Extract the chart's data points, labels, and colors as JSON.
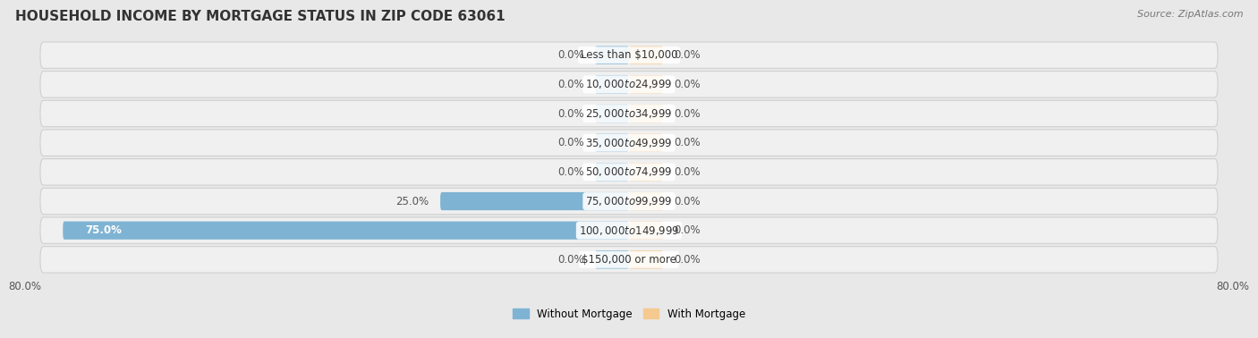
{
  "title": "HOUSEHOLD INCOME BY MORTGAGE STATUS IN ZIP CODE 63061",
  "source": "Source: ZipAtlas.com",
  "categories": [
    "Less than $10,000",
    "$10,000 to $24,999",
    "$25,000 to $34,999",
    "$35,000 to $49,999",
    "$50,000 to $74,999",
    "$75,000 to $99,999",
    "$100,000 to $149,999",
    "$150,000 or more"
  ],
  "without_mortgage": [
    0.0,
    0.0,
    0.0,
    0.0,
    0.0,
    25.0,
    75.0,
    0.0
  ],
  "with_mortgage": [
    0.0,
    0.0,
    0.0,
    0.0,
    0.0,
    0.0,
    0.0,
    0.0
  ],
  "color_without": "#7fb3d3",
  "color_with": "#f5c990",
  "xlim": [
    -80,
    80
  ],
  "xtick_left": -80.0,
  "xtick_right": 80.0,
  "fig_bg_color": "#e8e8e8",
  "row_bg_color": "#f0f0f0",
  "row_border_color": "#d0d0d0",
  "title_color": "#333333",
  "source_color": "#777777",
  "label_color": "#333333",
  "value_color_outside": "#555555",
  "value_color_inside": "#ffffff",
  "stub_value": 4.5,
  "label_font_size": 8.5,
  "value_font_size": 8.5,
  "title_font_size": 11,
  "source_font_size": 8
}
